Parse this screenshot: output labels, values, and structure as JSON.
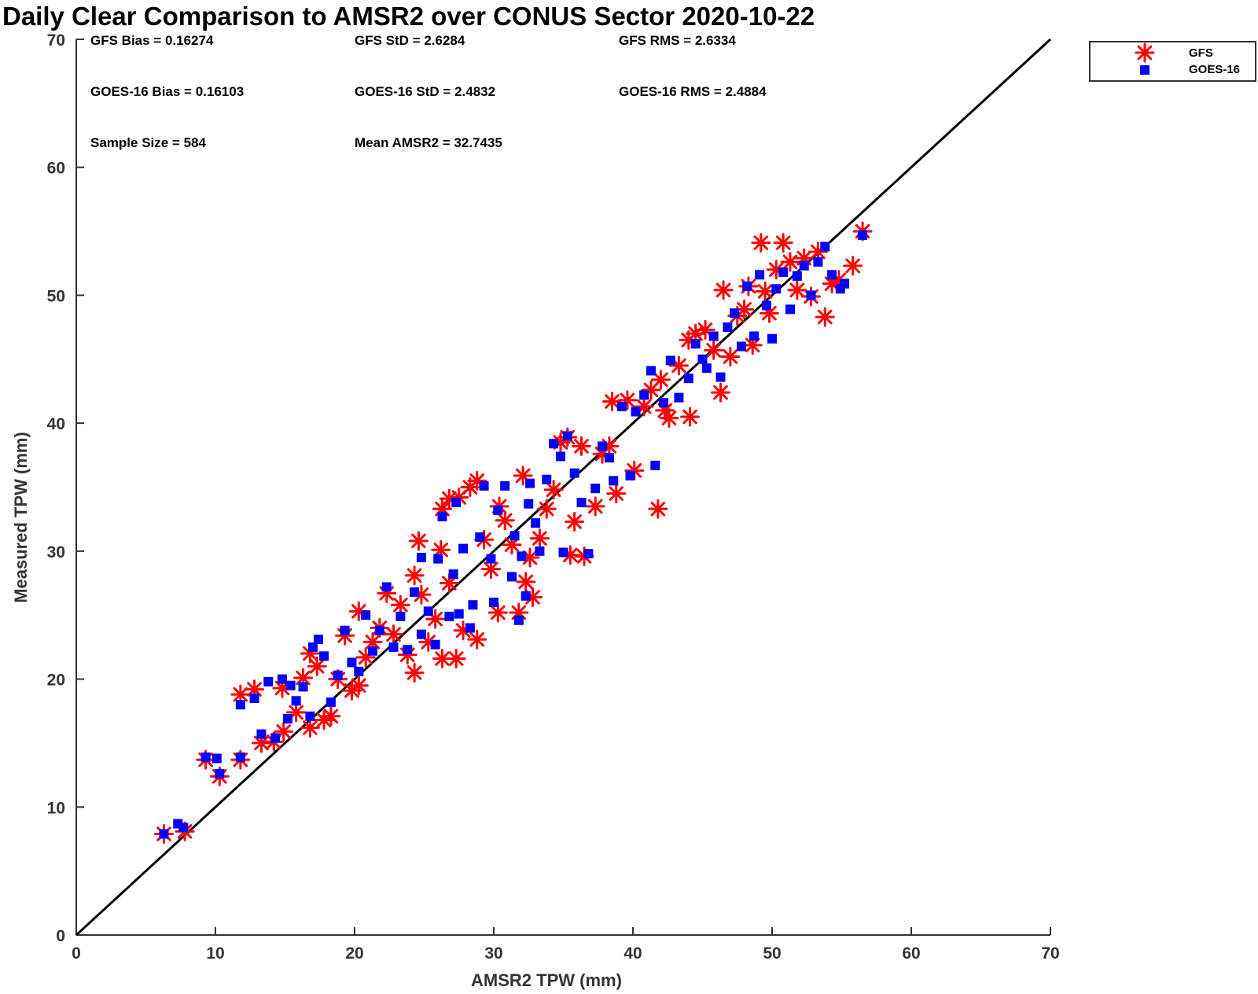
{
  "chart_data": {
    "type": "scatter",
    "title": "Daily Clear Comparison to AMSR2 over CONUS Sector 2020-10-22",
    "xlabel": "AMSR2 TPW (mm)",
    "ylabel": "Measured TPW (mm)",
    "xlim": [
      0,
      70
    ],
    "ylim": [
      0,
      70
    ],
    "xticks": [
      0,
      10,
      20,
      30,
      40,
      50,
      60,
      70
    ],
    "yticks": [
      0,
      10,
      20,
      30,
      40,
      50,
      60,
      70
    ],
    "grid": false,
    "legend_position": "outside top-right",
    "reference_line": {
      "x": [
        0,
        70
      ],
      "y": [
        0,
        70
      ],
      "color": "#000000"
    },
    "stats": [
      "GFS Bias = 0.16274",
      "GFS StD = 2.6284",
      "GFS RMS = 2.6334",
      "GOES-16 Bias = 0.16103",
      "GOES-16 StD = 2.4832",
      "GOES-16 RMS = 2.4884",
      "Sample Size = 584",
      "Mean AMSR2 = 32.7435"
    ],
    "series": [
      {
        "name": "GFS",
        "marker": "asterisk",
        "color": "#ff0000",
        "points": [
          [
            6.3,
            7.9
          ],
          [
            7.8,
            8.1
          ],
          [
            9.3,
            13.7
          ],
          [
            10.3,
            12.4
          ],
          [
            11.8,
            13.7
          ],
          [
            11.8,
            18.8
          ],
          [
            12.8,
            19.2
          ],
          [
            13.3,
            15.0
          ],
          [
            14.2,
            15.1
          ],
          [
            14.8,
            19.3
          ],
          [
            14.9,
            15.9
          ],
          [
            15.8,
            17.4
          ],
          [
            16.3,
            20.1
          ],
          [
            16.8,
            16.2
          ],
          [
            17.3,
            21.0
          ],
          [
            17.8,
            16.8
          ],
          [
            18.3,
            17.1
          ],
          [
            16.8,
            22.0
          ],
          [
            18.8,
            20.0
          ],
          [
            19.3,
            23.4
          ],
          [
            19.8,
            19.1
          ],
          [
            20.3,
            19.5
          ],
          [
            20.3,
            25.3
          ],
          [
            20.8,
            21.7
          ],
          [
            21.3,
            22.9
          ],
          [
            21.8,
            24.0
          ],
          [
            22.3,
            26.7
          ],
          [
            22.8,
            23.5
          ],
          [
            23.3,
            25.8
          ],
          [
            23.8,
            21.9
          ],
          [
            24.3,
            20.5
          ],
          [
            24.3,
            28.1
          ],
          [
            24.6,
            30.8
          ],
          [
            24.8,
            26.6
          ],
          [
            25.3,
            22.9
          ],
          [
            25.8,
            24.7
          ],
          [
            26.2,
            30.1
          ],
          [
            26.3,
            21.6
          ],
          [
            26.8,
            27.5
          ],
          [
            27.3,
            21.6
          ],
          [
            26.3,
            33.3
          ],
          [
            26.8,
            34.1
          ],
          [
            27.5,
            34.2
          ],
          [
            27.8,
            23.8
          ],
          [
            28.3,
            35.0
          ],
          [
            28.8,
            23.1
          ],
          [
            28.8,
            35.5
          ],
          [
            29.3,
            30.9
          ],
          [
            29.8,
            28.6
          ],
          [
            30.3,
            25.2
          ],
          [
            30.4,
            33.5
          ],
          [
            30.8,
            32.4
          ],
          [
            31.3,
            30.5
          ],
          [
            31.8,
            25.2
          ],
          [
            32.1,
            35.9
          ],
          [
            32.3,
            27.6
          ],
          [
            32.6,
            29.5
          ],
          [
            32.8,
            26.4
          ],
          [
            33.3,
            31.0
          ],
          [
            33.8,
            33.3
          ],
          [
            34.3,
            34.8
          ],
          [
            34.8,
            38.5
          ],
          [
            35.3,
            38.9
          ],
          [
            35.5,
            29.7
          ],
          [
            35.8,
            32.3
          ],
          [
            36.3,
            38.2
          ],
          [
            36.5,
            29.6
          ],
          [
            37.3,
            33.5
          ],
          [
            37.8,
            37.6
          ],
          [
            38.3,
            38.2
          ],
          [
            38.8,
            34.5
          ],
          [
            38.5,
            41.7
          ],
          [
            39.6,
            41.8
          ],
          [
            40.1,
            36.3
          ],
          [
            40.8,
            41.3
          ],
          [
            41.3,
            42.6
          ],
          [
            41.8,
            33.3
          ],
          [
            42.0,
            43.4
          ],
          [
            42.3,
            41.0
          ],
          [
            42.6,
            40.4
          ],
          [
            43.3,
            44.5
          ],
          [
            44.0,
            46.5
          ],
          [
            44.1,
            40.5
          ],
          [
            44.5,
            47.0
          ],
          [
            45.2,
            47.3
          ],
          [
            45.8,
            45.7
          ],
          [
            46.3,
            42.4
          ],
          [
            46.5,
            50.4
          ],
          [
            47.0,
            45.2
          ],
          [
            47.5,
            48.4
          ],
          [
            48.0,
            48.9
          ],
          [
            48.3,
            50.7
          ],
          [
            48.6,
            46.1
          ],
          [
            49.2,
            54.1
          ],
          [
            49.5,
            50.3
          ],
          [
            49.8,
            48.6
          ],
          [
            50.3,
            52.0
          ],
          [
            50.8,
            54.1
          ],
          [
            51.3,
            52.6
          ],
          [
            51.8,
            50.4
          ],
          [
            52.3,
            52.9
          ],
          [
            52.8,
            49.9
          ],
          [
            53.3,
            53.4
          ],
          [
            53.8,
            48.3
          ],
          [
            54.3,
            50.9
          ],
          [
            54.8,
            51.2
          ],
          [
            55.8,
            52.3
          ],
          [
            56.5,
            55.0
          ]
        ]
      },
      {
        "name": "GOES-16",
        "marker": "square",
        "color": "#0000ff",
        "points": [
          [
            6.3,
            7.9
          ],
          [
            7.3,
            8.7
          ],
          [
            7.7,
            8.4
          ],
          [
            9.3,
            13.9
          ],
          [
            10.1,
            13.8
          ],
          [
            10.3,
            12.6
          ],
          [
            11.8,
            18.0
          ],
          [
            11.8,
            13.9
          ],
          [
            12.8,
            18.5
          ],
          [
            13.3,
            15.7
          ],
          [
            13.8,
            19.8
          ],
          [
            14.3,
            15.4
          ],
          [
            14.8,
            20.0
          ],
          [
            15.2,
            16.9
          ],
          [
            15.4,
            19.5
          ],
          [
            15.8,
            18.3
          ],
          [
            16.3,
            19.4
          ],
          [
            16.8,
            17.1
          ],
          [
            17.0,
            22.5
          ],
          [
            17.4,
            23.1
          ],
          [
            17.8,
            21.8
          ],
          [
            18.3,
            18.2
          ],
          [
            18.8,
            20.3
          ],
          [
            19.3,
            23.8
          ],
          [
            19.8,
            21.3
          ],
          [
            20.3,
            20.6
          ],
          [
            20.8,
            25.0
          ],
          [
            21.3,
            22.2
          ],
          [
            21.8,
            23.8
          ],
          [
            22.3,
            27.2
          ],
          [
            22.8,
            22.5
          ],
          [
            23.3,
            24.9
          ],
          [
            23.8,
            22.3
          ],
          [
            24.3,
            26.8
          ],
          [
            24.8,
            29.5
          ],
          [
            24.8,
            23.5
          ],
          [
            25.3,
            25.3
          ],
          [
            25.8,
            22.7
          ],
          [
            26.0,
            29.4
          ],
          [
            26.3,
            32.7
          ],
          [
            26.8,
            24.9
          ],
          [
            27.1,
            28.2
          ],
          [
            27.3,
            33.8
          ],
          [
            27.5,
            25.1
          ],
          [
            27.8,
            30.2
          ],
          [
            28.3,
            24.0
          ],
          [
            28.5,
            25.8
          ],
          [
            29.0,
            31.1
          ],
          [
            29.3,
            35.1
          ],
          [
            29.8,
            29.4
          ],
          [
            30.0,
            26.0
          ],
          [
            30.3,
            33.2
          ],
          [
            30.8,
            35.1
          ],
          [
            31.3,
            28.0
          ],
          [
            31.5,
            31.2
          ],
          [
            31.8,
            24.6
          ],
          [
            32.0,
            29.6
          ],
          [
            32.3,
            26.5
          ],
          [
            32.5,
            33.7
          ],
          [
            32.6,
            35.3
          ],
          [
            33.0,
            32.2
          ],
          [
            33.3,
            30.0
          ],
          [
            33.8,
            35.6
          ],
          [
            34.3,
            38.4
          ],
          [
            34.8,
            37.4
          ],
          [
            35.0,
            29.9
          ],
          [
            35.3,
            39.0
          ],
          [
            35.8,
            36.1
          ],
          [
            36.3,
            33.8
          ],
          [
            36.8,
            29.8
          ],
          [
            37.3,
            34.9
          ],
          [
            37.8,
            38.2
          ],
          [
            38.3,
            37.3
          ],
          [
            38.6,
            35.5
          ],
          [
            39.2,
            41.3
          ],
          [
            39.8,
            35.9
          ],
          [
            40.2,
            40.9
          ],
          [
            40.8,
            42.2
          ],
          [
            41.3,
            44.1
          ],
          [
            41.6,
            36.7
          ],
          [
            42.2,
            41.6
          ],
          [
            42.7,
            44.9
          ],
          [
            43.3,
            42.0
          ],
          [
            44.0,
            43.5
          ],
          [
            44.5,
            46.2
          ],
          [
            45.0,
            45.0
          ],
          [
            45.3,
            44.3
          ],
          [
            45.8,
            46.8
          ],
          [
            46.3,
            43.6
          ],
          [
            46.8,
            47.5
          ],
          [
            47.3,
            48.6
          ],
          [
            47.8,
            46.0
          ],
          [
            48.2,
            50.7
          ],
          [
            48.7,
            46.8
          ],
          [
            49.1,
            51.6
          ],
          [
            49.6,
            49.2
          ],
          [
            50.0,
            46.6
          ],
          [
            50.3,
            50.5
          ],
          [
            50.8,
            51.8
          ],
          [
            51.3,
            48.9
          ],
          [
            51.8,
            51.5
          ],
          [
            52.3,
            52.3
          ],
          [
            52.8,
            50.0
          ],
          [
            53.3,
            52.6
          ],
          [
            53.8,
            53.8
          ],
          [
            54.3,
            51.6
          ],
          [
            54.9,
            50.5
          ],
          [
            55.2,
            50.9
          ],
          [
            56.5,
            54.7
          ]
        ]
      }
    ]
  }
}
